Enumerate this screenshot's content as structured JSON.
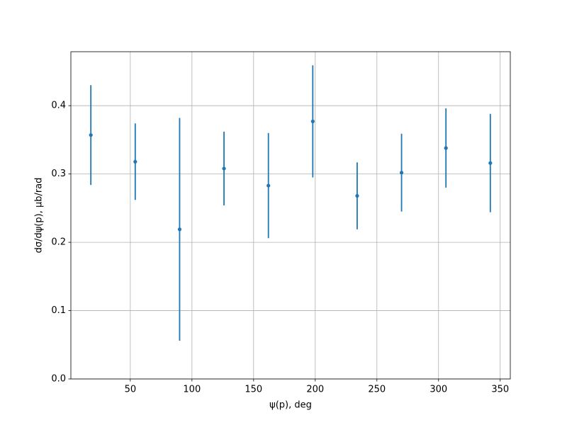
{
  "chart_data": {
    "type": "errorbar",
    "x_label": "ψ(p), deg",
    "y_label": "dσ/dψ(p), μb/rad",
    "x": [
      18,
      54,
      90,
      126,
      162,
      198,
      234,
      270,
      306,
      342
    ],
    "series": [
      {
        "color": "#1f77b4",
        "values": [
          0.357,
          0.318,
          0.219,
          0.308,
          0.283,
          0.377,
          0.268,
          0.302,
          0.338,
          0.316
        ],
        "errors": [
          0.073,
          0.056,
          0.163,
          0.054,
          0.077,
          0.082,
          0.049,
          0.057,
          0.058,
          0.072
        ]
      }
    ],
    "xlim": [
      1.8,
      358.2
    ],
    "ylim": [
      0,
      0.479
    ],
    "xticks": [
      50,
      100,
      150,
      200,
      250,
      300,
      350
    ],
    "yticks": [
      {
        "value": 0,
        "label": "0.0"
      },
      0.1,
      0.2,
      0.3,
      0.4
    ],
    "grid": true
  }
}
